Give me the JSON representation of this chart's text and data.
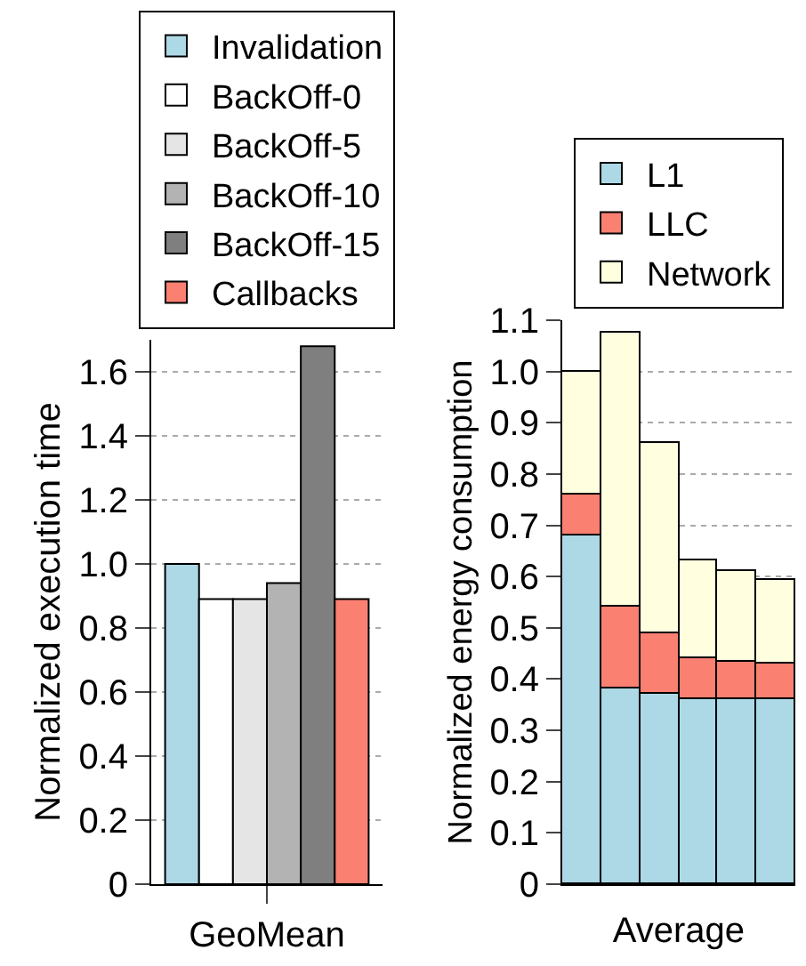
{
  "chart_data": [
    {
      "type": "bar",
      "ylabel": "Normalized execution time",
      "categories": [
        "GeoMean"
      ],
      "series": [
        {
          "name": "Invalidation",
          "color": "#add8e6",
          "values": [
            1.0
          ]
        },
        {
          "name": "BackOff-0",
          "color": "#ffffff",
          "values": [
            0.89
          ]
        },
        {
          "name": "BackOff-5",
          "color": "#e5e5e5",
          "values": [
            0.89
          ]
        },
        {
          "name": "BackOff-10",
          "color": "#b3b3b3",
          "values": [
            0.94
          ]
        },
        {
          "name": "BackOff-15",
          "color": "#7f7f7f",
          "values": [
            1.68
          ]
        },
        {
          "name": "Callbacks",
          "color": "#fa8072",
          "values": [
            0.89
          ]
        }
      ],
      "ylim": [
        0,
        1.7
      ],
      "yticks": [
        0,
        0.2,
        0.4,
        0.6,
        0.8,
        {
          "value": 1,
          "label": "1.0"
        },
        1.2,
        1.4,
        1.6
      ],
      "grid": "y",
      "legend": "top"
    },
    {
      "type": "bar",
      "stacked": true,
      "ylabel": "Normalized energy consumption",
      "xlabel": "Average",
      "categories": [
        null,
        null,
        null,
        null,
        null,
        null
      ],
      "series": [
        {
          "name": "L1",
          "color": "#add8e6",
          "values": [
            0.68,
            0.38,
            0.37,
            0.36,
            0.36,
            0.36
          ]
        },
        {
          "name": "LLC",
          "color": "#fa8072",
          "values": [
            0.08,
            0.16,
            0.12,
            0.08,
            0.075,
            0.07
          ]
        },
        {
          "name": "Network",
          "color": "#ffffe0",
          "values": [
            0.24,
            0.535,
            0.37,
            0.19,
            0.175,
            0.165
          ]
        }
      ],
      "ylim": [
        0,
        1.1
      ],
      "yticks": [
        0,
        0.1,
        0.2,
        0.3,
        0.4,
        0.5,
        0.6,
        0.7,
        0.8,
        0.9,
        {
          "value": 1,
          "label": "1.0"
        },
        1.1
      ],
      "grid": "y",
      "legend": "top"
    }
  ]
}
